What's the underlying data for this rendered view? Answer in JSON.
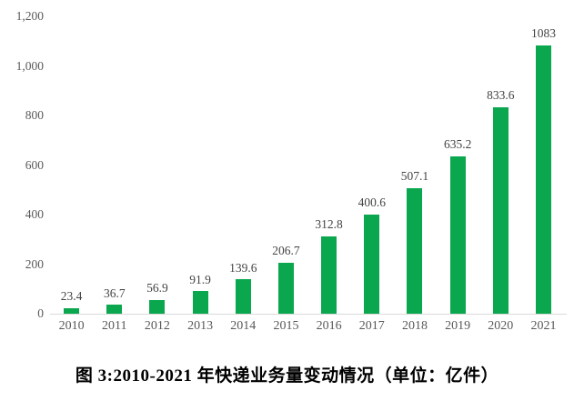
{
  "caption": "图 3:2010-2021 年快递业务量变动情况（单位：亿件）",
  "colors": {
    "bar": "#0aa74f",
    "axis_line": "#d9d9d9",
    "tick_text": "#595959",
    "data_label_text": "#444444",
    "caption_text": "#000000",
    "background": "#ffffff"
  },
  "chart_data": {
    "type": "bar",
    "title": "图 3:2010-2021 年快递业务量变动情况（单位：亿件）",
    "xlabel": "",
    "ylabel": "",
    "categories": [
      "2010",
      "2011",
      "2012",
      "2013",
      "2014",
      "2015",
      "2016",
      "2017",
      "2018",
      "2019",
      "2020",
      "2021"
    ],
    "values": [
      23.4,
      36.7,
      56.9,
      91.9,
      139.6,
      206.7,
      312.8,
      400.6,
      507.1,
      635.2,
      833.6,
      1083
    ],
    "data_labels": [
      "23.4",
      "36.7",
      "56.9",
      "91.9",
      "139.6",
      "206.7",
      "312.8",
      "400.6",
      "507.1",
      "635.2",
      "833.6",
      "1083"
    ],
    "unit": "亿件",
    "ylim": [
      0,
      1200
    ],
    "ytick_values": [
      0,
      200,
      400,
      600,
      800,
      1000,
      1200
    ],
    "ytick_labels": [
      "0",
      "200",
      "400",
      "600",
      "800",
      "1,000",
      "1,200"
    ],
    "grid": false,
    "legend": "none"
  }
}
